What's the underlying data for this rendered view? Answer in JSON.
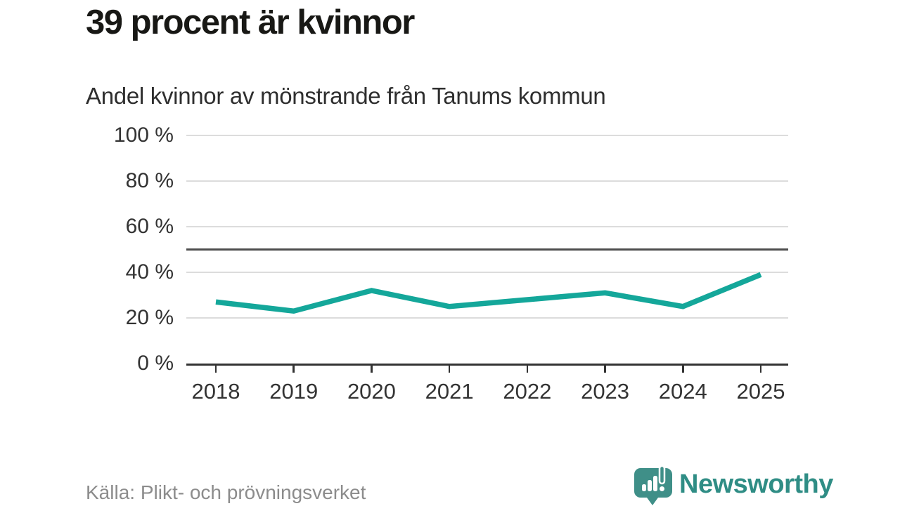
{
  "header": {
    "title": "39 procent är kvinnor",
    "subtitle": "Andel kvinnor av mönstrande från Tanums kommun"
  },
  "chart_data": {
    "type": "line",
    "title": "39 procent är kvinnor",
    "subtitle": "Andel kvinnor av mönstrande från Tanums kommun",
    "x": [
      2018,
      2019,
      2020,
      2021,
      2022,
      2023,
      2024,
      2025
    ],
    "xtick_labels": [
      "2018",
      "2019",
      "2020",
      "2021",
      "2022",
      "2023",
      "2024",
      "2025"
    ],
    "series": [
      {
        "name": "Andel kvinnor av mönstrande",
        "values": [
          27,
          23,
          32,
          25,
          28,
          31,
          25,
          39
        ]
      }
    ],
    "ylim": [
      0,
      100
    ],
    "yticks": [
      0,
      20,
      40,
      60,
      80,
      100
    ],
    "ytick_labels": [
      "0 %",
      "20 %",
      "40 %",
      "60 %",
      "80 %",
      "100 %"
    ],
    "reference_line": 50,
    "grid": true,
    "legend": "none",
    "line_color": "#14a79a",
    "grid_color": "#dcdcdc",
    "axis_color": "#333333",
    "reference_line_color": "#4d4d4d"
  },
  "footer": {
    "source": "Källa: Plikt- och prövningsverket",
    "brand_name": "Newsworthy",
    "brand_color": "#2f8d85",
    "logo_icon": "speech-bubble-bar-chart-icon",
    "logo_color": "#3f8f88"
  }
}
